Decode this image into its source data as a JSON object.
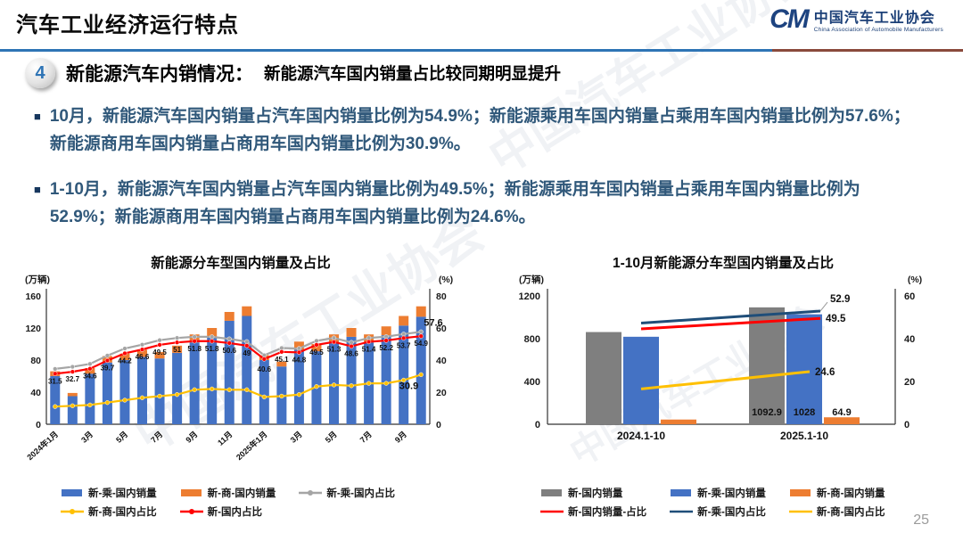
{
  "slide": {
    "title": "汽车工业经济运行特点",
    "page_number": "25"
  },
  "logo": {
    "mark": "CM",
    "org_cn": "中国汽车工业协会",
    "org_en": "China Association of Automobile Manufacturers"
  },
  "section": {
    "number": "4",
    "heading": "新能源汽车内销情况：",
    "subheading": "新能源汽车国内销量占比较同期明显提升"
  },
  "bullets": [
    {
      "text": "10月，新能源汽车国内销量占汽车国内销量比例为54.9%；新能源乘用车国内销量占乘用车国内销量比例为57.6%；新能源商用车国内销量占商用车国内销量比例为30.9%。"
    },
    {
      "text": "1-10月，新能源汽车国内销量占汽车国内销量比例为49.5%；新能源乘用车国内销量占乘用车国内销量比例为52.9%；新能源商用车国内销量占商用车国内销量比例为24.6%。"
    }
  ],
  "colors": {
    "accent_blue": "#2e74b5",
    "body_text": "#30587a",
    "bar_blue": "#4472c4",
    "bar_orange": "#ed7d31",
    "bar_grey": "#7f7f7f",
    "line_grey": "#a5a5a5",
    "line_red": "#ff0000",
    "line_yellow": "#ffc000",
    "line_darkblue": "#1f4e79"
  },
  "chart_data": [
    {
      "id": "monthly",
      "type": "bar",
      "subtype": "stacked-bars-with-lines",
      "title": "新能源分车型国内销量及占比",
      "left_axis": {
        "label": "(万辆)",
        "ticks": [
          0,
          40,
          80,
          120,
          160
        ],
        "max": 160
      },
      "right_axis": {
        "label": "(%)",
        "ticks": [
          0,
          20,
          40,
          60,
          80
        ],
        "max": 80
      },
      "categories": [
        "2024年1月",
        "2024年2月",
        "2024年3月",
        "2024年4月",
        "2024年5月",
        "2024年6月",
        "2024年7月",
        "2024年8月",
        "2024年9月",
        "2024年10月",
        "2024年11月",
        "2024年12月",
        "2025年1月",
        "2025年2月",
        "2025年3月",
        "2025年4月",
        "2025年5月",
        "2025年6月",
        "2025年7月",
        "2025年8月",
        "2025年9月",
        "2025年10月"
      ],
      "x_ticks": [
        {
          "index": 0,
          "label": "2024年1月"
        },
        {
          "index": 2,
          "label": "3月"
        },
        {
          "index": 4,
          "label": "5月"
        },
        {
          "index": 6,
          "label": "7月"
        },
        {
          "index": 8,
          "label": "9月"
        },
        {
          "index": 10,
          "label": "11月"
        },
        {
          "index": 12,
          "label": "2025年1月"
        },
        {
          "index": 14,
          "label": "3月"
        },
        {
          "index": 16,
          "label": "5月"
        },
        {
          "index": 18,
          "label": "7月"
        },
        {
          "index": 20,
          "label": "9月"
        }
      ],
      "bar_series": [
        {
          "name": "新-乘-国内销量",
          "color": "#4472c4",
          "axis": "left",
          "values": [
            60,
            35,
            63,
            77,
            80,
            84,
            82,
            89,
            102,
            109,
            129,
            135,
            80,
            72,
            93,
            91,
            101,
            109,
            102,
            111,
            123,
            134
          ]
        },
        {
          "name": "新-商-国内销量",
          "color": "#ed7d31",
          "axis": "left",
          "values": [
            6,
            4,
            7,
            8,
            8,
            9,
            8,
            9,
            10,
            11,
            11,
            12,
            6,
            6,
            10,
            9,
            11,
            11,
            10,
            11,
            12,
            13
          ]
        }
      ],
      "line_series": [
        {
          "name": "新-乘-国内占比",
          "color": "#a5a5a5",
          "axis": "right",
          "values": [
            34.5,
            35.8,
            37.6,
            42.8,
            47.2,
            49.6,
            52.4,
            53.8,
            54.5,
            54.5,
            53.2,
            51.5,
            43.0,
            47.5,
            47.2,
            52.0,
            53.8,
            51.0,
            53.8,
            54.6,
            56.2,
            57.6
          ],
          "end_label": "57.6"
        },
        {
          "name": "新-国内占比",
          "color": "#ff0000",
          "axis": "right",
          "values": [
            31.5,
            32.7,
            34.6,
            39.7,
            44.2,
            46.6,
            49.5,
            51,
            51.8,
            51.8,
            50.6,
            49,
            40.6,
            45.1,
            44.8,
            49.5,
            51.3,
            48.6,
            51.4,
            52.2,
            53.7,
            54.9
          ],
          "point_labels": [
            "31.5",
            "32.7",
            "34.6",
            "39.7",
            "44.2",
            "46.6",
            "49.5",
            "51",
            "51.8",
            "51.8",
            "50.6",
            "49",
            "40.6",
            "45.1",
            "44.8",
            "49.5",
            "51.3",
            "48.6",
            "51.4",
            "52.2",
            "53.7",
            "54.9"
          ]
        },
        {
          "name": "新-商-国内占比",
          "color": "#ffc000",
          "axis": "right",
          "values": [
            11,
            11.5,
            12,
            13.5,
            15,
            16.5,
            17.5,
            18.5,
            21.5,
            22,
            21.5,
            21.5,
            17,
            17.5,
            18.5,
            23.5,
            24.5,
            24,
            25.5,
            25.5,
            27.5,
            30.9
          ],
          "end_label": "30.9"
        }
      ],
      "legend_rows": [
        [
          "新-乘-国内销量",
          "新-商-国内销量",
          "新-乘-国内占比"
        ],
        [
          "新-商-国内占比",
          "新-国内占比"
        ]
      ]
    },
    {
      "id": "cumulative",
      "type": "bar",
      "subtype": "grouped-bars-with-lines",
      "title": "1-10月新能源分车型国内销量及占比",
      "left_axis": {
        "label": "(万辆)",
        "ticks": [
          0,
          400,
          800,
          1200
        ],
        "max": 1200
      },
      "right_axis": {
        "label": "(%)",
        "ticks": [
          0,
          20,
          40,
          60
        ],
        "max": 60
      },
      "categories": [
        "2024.1-10",
        "2025.1-10"
      ],
      "bar_series": [
        {
          "name": "新-国内销量",
          "color": "#7f7f7f",
          "axis": "left",
          "values": [
            862,
            1092.9
          ],
          "labels": [
            "",
            "1092.9"
          ]
        },
        {
          "name": "新-乘-国内销量",
          "color": "#4472c4",
          "axis": "left",
          "values": [
            818,
            1028
          ],
          "labels": [
            "",
            "1028"
          ]
        },
        {
          "name": "新-商-国内销量",
          "color": "#ed7d31",
          "axis": "left",
          "values": [
            44,
            64.9
          ],
          "labels": [
            "",
            "64.9"
          ]
        }
      ],
      "line_series": [
        {
          "name": "新-乘-国内占比",
          "color": "#1f4e79",
          "axis": "right",
          "values": [
            47.3,
            52.9
          ],
          "end_label": "52.9"
        },
        {
          "name": "新-国内销量-占比",
          "color": "#ff0000",
          "axis": "right",
          "values": [
            44.6,
            49.5
          ],
          "end_label": "49.5"
        },
        {
          "name": "新-商-国内占比",
          "color": "#ffc000",
          "axis": "right",
          "values": [
            16.5,
            24.6
          ],
          "end_label": "24.6"
        }
      ],
      "legend_rows": [
        [
          "新-国内销量",
          "新-乘-国内销量",
          "新-商-国内销量"
        ],
        [
          "新-国内销量-占比",
          "新-乘-国内占比",
          "新-商-国内占比"
        ]
      ]
    }
  ]
}
